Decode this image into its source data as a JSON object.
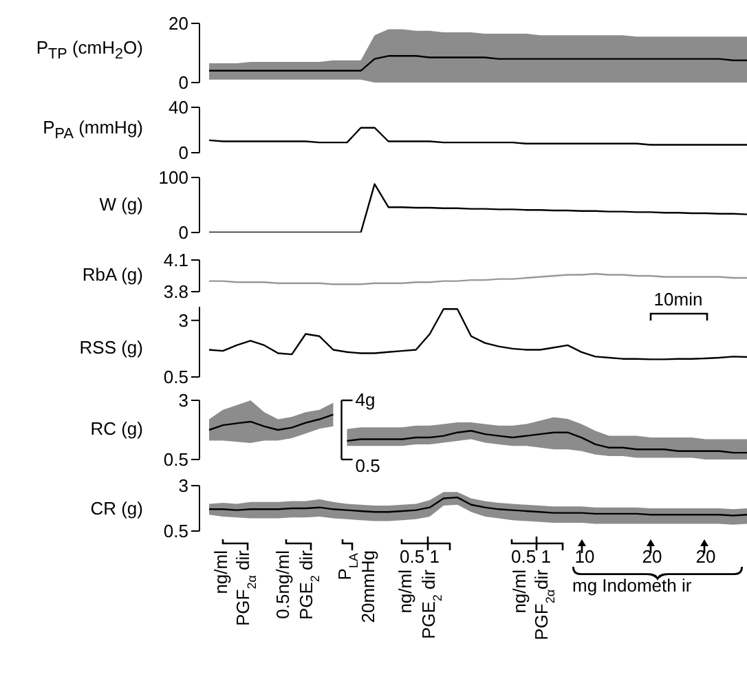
{
  "chart_data": [
    {
      "type": "line",
      "ylabel": "P$_{TP}$ (cmH$_{2}$O)",
      "categories": [
        null,
        null,
        null,
        null,
        null,
        null,
        null,
        null,
        null,
        null,
        null,
        null,
        null,
        null,
        null,
        null,
        null,
        null,
        null,
        null,
        null,
        null,
        null,
        null,
        null,
        null,
        null,
        null,
        null,
        null,
        null,
        null,
        null,
        null,
        null,
        null,
        null,
        null,
        null,
        null
      ],
      "ylim": [
        0,
        20
      ],
      "yticks": [
        0,
        20
      ],
      "tick_labels": "y",
      "series": [
        {
          "color": "#000000",
          "values": [
            4,
            4,
            4,
            4,
            4,
            4,
            4,
            4,
            4,
            4,
            4,
            4,
            8,
            9,
            9,
            9,
            8.5,
            8.5,
            8.5,
            8.5,
            8.5,
            8,
            8,
            8,
            8,
            8,
            8,
            8,
            8,
            8,
            8,
            8,
            8,
            8,
            8,
            8,
            8,
            8,
            7.5,
            7.5
          ],
          "lower": [
            1,
            1,
            1,
            1,
            1,
            1,
            1,
            1,
            1,
            1,
            1,
            1,
            0,
            0,
            0,
            0,
            0,
            0,
            0,
            0,
            0,
            0,
            0,
            0,
            0,
            0,
            0,
            0,
            0,
            0,
            0,
            0,
            0,
            0,
            0,
            0,
            0,
            0,
            0,
            0
          ],
          "upper": [
            6.5,
            6.5,
            6.5,
            7,
            7,
            7,
            7,
            7,
            7,
            7.5,
            7.5,
            7.5,
            16,
            18,
            18,
            17.5,
            17.5,
            17,
            17,
            17,
            16.5,
            16.5,
            16.5,
            16.5,
            16,
            16,
            16,
            16,
            16,
            16,
            16,
            15.5,
            15.5,
            15.5,
            15.5,
            15.5,
            15.5,
            15.5,
            15.5,
            15.5
          ]
        }
      ]
    },
    {
      "type": "line",
      "ylabel": "P$_{PA}$ (mmHg)",
      "categories": [
        null,
        null,
        null,
        null,
        null,
        null,
        null,
        null,
        null,
        null,
        null,
        null,
        null,
        null,
        null,
        null,
        null,
        null,
        null,
        null,
        null,
        null,
        null,
        null,
        null,
        null,
        null,
        null,
        null,
        null,
        null,
        null,
        null,
        null,
        null,
        null,
        null,
        null,
        null,
        null
      ],
      "ylim": [
        0,
        40
      ],
      "yticks": [
        0,
        40
      ],
      "tick_labels": "y",
      "series": [
        {
          "color": "#000000",
          "values": [
            11,
            10,
            10,
            10,
            10,
            10,
            10,
            10,
            9,
            9,
            9,
            22,
            22,
            10,
            10,
            10,
            10,
            9,
            9,
            9,
            9,
            9,
            9,
            8,
            8,
            8,
            8,
            8,
            8,
            8,
            8,
            8,
            7,
            7,
            7,
            7,
            7,
            7,
            7,
            7
          ]
        }
      ]
    },
    {
      "type": "line",
      "ylabel": "W (g)",
      "categories": [
        null,
        null,
        null,
        null,
        null,
        null,
        null,
        null,
        null,
        null,
        null,
        null,
        null,
        null,
        null,
        null,
        null,
        null,
        null,
        null,
        null,
        null,
        null,
        null,
        null,
        null,
        null,
        null,
        null,
        null,
        null,
        null,
        null,
        null,
        null,
        null,
        null,
        null,
        null,
        null
      ],
      "ylim": [
        0,
        100
      ],
      "yticks": [
        0,
        100
      ],
      "tick_labels": "y",
      "series": [
        {
          "color": "#000000",
          "values": [
            0,
            0,
            0,
            0,
            0,
            0,
            0,
            0,
            0,
            0,
            0,
            0,
            88,
            46,
            46,
            45,
            45,
            44,
            44,
            43,
            43,
            42,
            42,
            41,
            41,
            40,
            40,
            39,
            39,
            38,
            38,
            37,
            37,
            36,
            36,
            35,
            35,
            34,
            34,
            33
          ]
        }
      ]
    },
    {
      "type": "line",
      "ylabel": "RbA (g)",
      "categories": [
        null,
        null,
        null,
        null,
        null,
        null,
        null,
        null,
        null,
        null,
        null,
        null,
        null,
        null,
        null,
        null,
        null,
        null,
        null,
        null,
        null,
        null,
        null,
        null,
        null,
        null,
        null,
        null,
        null,
        null,
        null,
        null,
        null,
        null,
        null,
        null,
        null,
        null,
        null,
        null
      ],
      "ylim": [
        3.8,
        4.1
      ],
      "yticks": [
        3.8,
        4.1
      ],
      "tick_labels": "y",
      "annotations": [
        "10min"
      ],
      "series": [
        {
          "color": "#999999",
          "values": [
            3.9,
            3.9,
            3.89,
            3.89,
            3.89,
            3.88,
            3.88,
            3.88,
            3.88,
            3.87,
            3.87,
            3.87,
            3.88,
            3.88,
            3.88,
            3.89,
            3.89,
            3.9,
            3.9,
            3.91,
            3.91,
            3.92,
            3.92,
            3.93,
            3.94,
            3.95,
            3.96,
            3.96,
            3.97,
            3.96,
            3.96,
            3.95,
            3.95,
            3.94,
            3.94,
            3.94,
            3.94,
            3.94,
            3.93,
            3.93
          ]
        }
      ]
    },
    {
      "type": "line",
      "ylabel": "RSS (g)",
      "categories": [
        null,
        null,
        null,
        null,
        null,
        null,
        null,
        null,
        null,
        null,
        null,
        null,
        null,
        null,
        null,
        null,
        null,
        null,
        null,
        null,
        null,
        null,
        null,
        null,
        null,
        null,
        null,
        null,
        null,
        null,
        null,
        null,
        null,
        null,
        null,
        null,
        null,
        null,
        null,
        null
      ],
      "ylim": [
        0.5,
        3.6
      ],
      "yticks": [
        0.5,
        3
      ],
      "tick_labels": "y",
      "series": [
        {
          "color": "#000000",
          "values": [
            1.7,
            1.65,
            1.9,
            2.1,
            1.9,
            1.55,
            1.5,
            2.4,
            2.3,
            1.7,
            1.6,
            1.55,
            1.55,
            1.6,
            1.65,
            1.7,
            2.4,
            3.5,
            3.5,
            2.3,
            2,
            1.85,
            1.75,
            1.7,
            1.7,
            1.8,
            1.9,
            1.6,
            1.4,
            1.35,
            1.3,
            1.3,
            1.28,
            1.28,
            1.3,
            1.3,
            1.32,
            1.35,
            1.4,
            1.38
          ]
        }
      ]
    },
    {
      "type": "line",
      "ylabel": "RC (g)",
      "categories": [
        null,
        null,
        null,
        null,
        null,
        null,
        null,
        null,
        null,
        null,
        null,
        null,
        null,
        null,
        null,
        null,
        null,
        null,
        null,
        null,
        null,
        null,
        null,
        null,
        null,
        null,
        null,
        null,
        null,
        null,
        null,
        null,
        null,
        null,
        null,
        null,
        null,
        null,
        null,
        null
      ],
      "ylim": [
        0.5,
        3
      ],
      "yticks": [
        0.5,
        3
      ],
      "y2lim": [
        0.5,
        4
      ],
      "y2ticks": [
        0.5,
        {
          "value": 4,
          "label": "4g"
        }
      ],
      "tick_labels": "y",
      "series": [
        {
          "color": "#000000",
          "values": [
            1.75,
            1.95,
            2.03,
            2.1,
            1.9,
            1.75,
            1.85,
            2.05,
            2.2,
            2.4,
            null,
            null,
            null,
            null,
            null,
            null,
            null,
            null,
            null,
            null,
            null,
            null,
            null,
            null,
            null,
            null,
            null,
            null,
            null,
            null,
            null,
            null,
            null,
            null,
            null,
            null,
            null,
            null,
            null,
            null
          ],
          "lower": [
            1.3,
            1.3,
            1.25,
            1.2,
            1.3,
            1.3,
            1.4,
            1.6,
            1.8,
            1.9,
            null,
            null,
            null,
            null,
            null,
            null,
            null,
            null,
            null,
            null,
            null,
            null,
            null,
            null,
            null,
            null,
            null,
            null,
            null,
            null,
            null,
            null,
            null,
            null,
            null,
            null,
            null,
            null,
            null,
            null
          ],
          "upper": [
            2.2,
            2.6,
            2.8,
            3,
            2.5,
            2.2,
            2.3,
            2.5,
            2.6,
            2.9,
            null,
            null,
            null,
            null,
            null,
            null,
            null,
            null,
            null,
            null,
            null,
            null,
            null,
            null,
            null,
            null,
            null,
            null,
            null,
            null,
            null,
            null,
            null,
            null,
            null,
            null,
            null,
            null,
            null,
            null
          ]
        },
        {
          "color": "#000000",
          "axis": "y2",
          "values": [
            null,
            null,
            null,
            null,
            null,
            null,
            null,
            null,
            null,
            null,
            1.6,
            1.7,
            1.7,
            1.7,
            1.7,
            1.8,
            1.8,
            1.9,
            2.1,
            2.2,
            2,
            1.9,
            1.8,
            1.9,
            2,
            2.1,
            2.1,
            1.8,
            1.4,
            1.2,
            1.2,
            1.1,
            1.1,
            1.1,
            1,
            1,
            1,
            1,
            0.9,
            0.9
          ],
          "lower": [
            null,
            null,
            null,
            null,
            null,
            null,
            null,
            null,
            null,
            null,
            1.3,
            1.3,
            1.3,
            1.3,
            1.3,
            1.4,
            1.4,
            1.5,
            1.6,
            1.7,
            1.5,
            1.4,
            1.3,
            1.3,
            1.2,
            1.1,
            1.1,
            1,
            0.8,
            0.7,
            0.7,
            0.6,
            0.6,
            0.6,
            0.6,
            0.6,
            0.5,
            0.5,
            0.5,
            0.5
          ],
          "upper": [
            null,
            null,
            null,
            null,
            null,
            null,
            null,
            null,
            null,
            null,
            2.3,
            2.4,
            2.4,
            2.4,
            2.4,
            2.5,
            2.5,
            2.6,
            2.7,
            2.7,
            2.6,
            2.5,
            2.5,
            2.6,
            2.8,
            3,
            2.9,
            2.6,
            2.2,
            1.9,
            1.9,
            1.9,
            1.8,
            1.8,
            1.8,
            1.8,
            1.7,
            1.7,
            1.7,
            1.7
          ]
        }
      ]
    },
    {
      "type": "line",
      "ylabel": "CR (g)",
      "categories": [
        null,
        null,
        null,
        null,
        null,
        null,
        null,
        null,
        null,
        null,
        null,
        null,
        null,
        null,
        null,
        null,
        null,
        null,
        null,
        null,
        null,
        null,
        null,
        null,
        null,
        null,
        null,
        null,
        null,
        null,
        null,
        null,
        null,
        null,
        null,
        null,
        null,
        null,
        null,
        null
      ],
      "ylim": [
        0.5,
        3
      ],
      "yticks": [
        0.5,
        3
      ],
      "tick_labels": "y",
      "annotations": [
        "ng/ml",
        "PGF$_{2α}$ dir",
        "0.5ng/ml",
        "PGE$_{2}$ dir",
        "P$_{LA}$",
        "20mmHg",
        "0.5 1",
        "ng/ml",
        "PGE$_{2}$ dir",
        "ng/ml",
        "PGF$_{2α}$dir",
        "0.5 1",
        "10",
        "20",
        "20",
        "mg Indometh ir"
      ],
      "series": [
        {
          "color": "#000000",
          "values": [
            1.7,
            1.7,
            1.65,
            1.7,
            1.7,
            1.7,
            1.75,
            1.75,
            1.8,
            1.7,
            1.65,
            1.6,
            1.55,
            1.55,
            1.6,
            1.65,
            1.8,
            2.3,
            2.35,
            1.95,
            1.8,
            1.7,
            1.65,
            1.6,
            1.55,
            1.5,
            1.5,
            1.5,
            1.45,
            1.45,
            1.45,
            1.45,
            1.4,
            1.4,
            1.4,
            1.4,
            1.4,
            1.4,
            1.35,
            1.4
          ],
          "lower": [
            1.4,
            1.3,
            1.25,
            1.2,
            1.2,
            1.2,
            1.25,
            1.25,
            1.3,
            1.2,
            1.15,
            1.1,
            1.05,
            1.05,
            1.1,
            1.15,
            1.3,
            1.9,
            1.95,
            1.55,
            1.3,
            1.2,
            1.1,
            1.05,
            1,
            0.95,
            0.95,
            0.95,
            0.9,
            0.9,
            0.9,
            0.9,
            0.9,
            0.9,
            0.9,
            0.9,
            0.9,
            0.9,
            0.85,
            0.9
          ],
          "upper": [
            2,
            2.05,
            2,
            2.1,
            2.1,
            2.1,
            2.15,
            2.15,
            2.25,
            2.1,
            2,
            1.95,
            1.9,
            1.9,
            1.95,
            2,
            2.2,
            2.65,
            2.65,
            2.3,
            2.15,
            2.05,
            2,
            1.95,
            1.9,
            1.85,
            1.85,
            1.85,
            1.8,
            1.8,
            1.8,
            1.8,
            1.75,
            1.75,
            1.75,
            1.75,
            1.75,
            1.75,
            1.7,
            1.75
          ]
        }
      ]
    }
  ]
}
